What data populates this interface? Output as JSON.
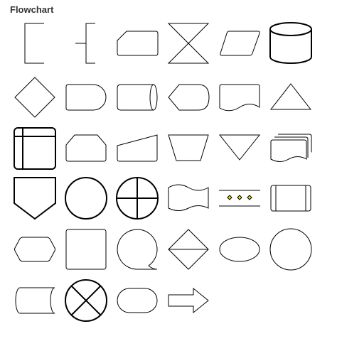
{
  "panel": {
    "title": "Flowchart"
  },
  "colors": {
    "stroke": "#000000",
    "fill": "#ffffff",
    "accent": "#f5e000"
  },
  "shapes": [
    {
      "name": "annotation-1-icon"
    },
    {
      "name": "annotation-2-icon"
    },
    {
      "name": "card-icon"
    },
    {
      "name": "collate-icon"
    },
    {
      "name": "data-icon"
    },
    {
      "name": "database-icon"
    },
    {
      "name": "decision-icon"
    },
    {
      "name": "delay-icon"
    },
    {
      "name": "direct-data-icon"
    },
    {
      "name": "display-icon"
    },
    {
      "name": "document-icon"
    },
    {
      "name": "extract-icon"
    },
    {
      "name": "internal-storage-icon"
    },
    {
      "name": "loop-limit-icon"
    },
    {
      "name": "manual-input-icon"
    },
    {
      "name": "manual-operation-icon"
    },
    {
      "name": "merge-icon"
    },
    {
      "name": "multi-document-icon"
    },
    {
      "name": "off-page-reference-icon"
    },
    {
      "name": "on-page-reference-icon"
    },
    {
      "name": "or-icon"
    },
    {
      "name": "paper-tape-icon"
    },
    {
      "name": "parallel-mode-icon"
    },
    {
      "name": "predefined-process-icon"
    },
    {
      "name": "preparation-icon"
    },
    {
      "name": "process-icon"
    },
    {
      "name": "sequential-data-icon"
    },
    {
      "name": "sort-icon"
    },
    {
      "name": "start-1-icon"
    },
    {
      "name": "start-2-icon"
    },
    {
      "name": "stored-data-icon"
    },
    {
      "name": "summing-function-icon"
    },
    {
      "name": "terminator-icon"
    },
    {
      "name": "transfer-icon"
    }
  ]
}
